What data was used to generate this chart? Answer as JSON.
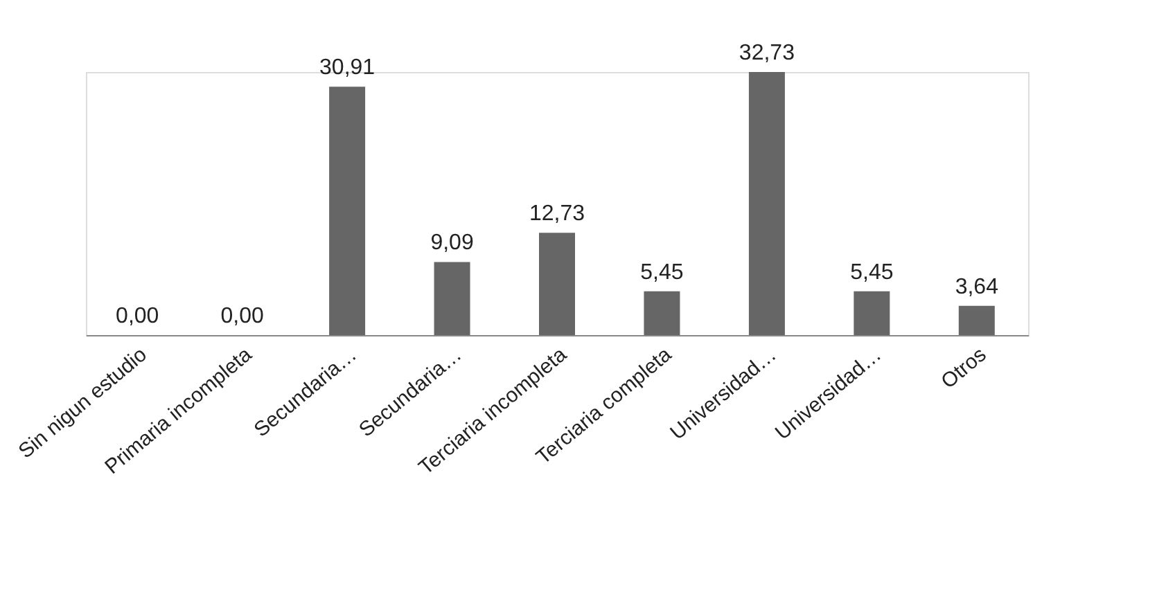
{
  "chart_data": {
    "type": "bar",
    "categories": [
      "Sin nigun estudio",
      "Primaria incompleta",
      "Secundaria…",
      "Secundaria…",
      "Terciaria incompleta",
      "Terciaria completa",
      "Universidad…",
      "Universidad…",
      "Otros"
    ],
    "values": [
      0.0,
      0.0,
      30.91,
      9.09,
      12.73,
      5.45,
      32.73,
      5.45,
      3.64
    ],
    "value_labels": [
      "0,00",
      "0,00",
      "30,91",
      "9,09",
      "12,73",
      "5,45",
      "32,73",
      "5,45",
      "3,64"
    ],
    "color": "#666666",
    "grid": false
  }
}
